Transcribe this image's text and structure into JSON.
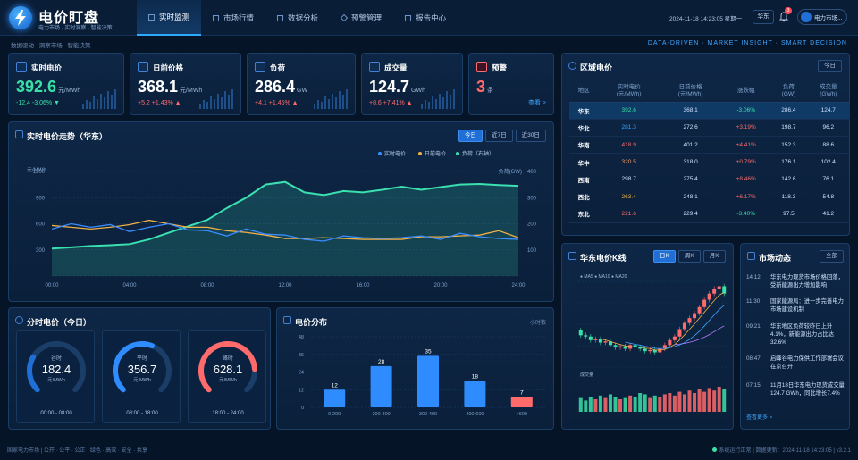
{
  "app": {
    "title": "电价盯盘",
    "subtitle": "电力市场 · 实时洞察 · 智能决策"
  },
  "nav": [
    {
      "label": "实时监测",
      "active": true
    },
    {
      "label": "市场行情"
    },
    {
      "label": "数据分析"
    },
    {
      "label": "预警管理"
    },
    {
      "label": "报告中心"
    }
  ],
  "header": {
    "datetime": "2024-11-18 14:23:05 星期一",
    "region": "华东",
    "bell_badge": "3",
    "user": "电力市场..."
  },
  "breadcrumb": "数据驱动 · 洞察市场 · 智能决策",
  "slogan": "DATA-DRIVEN · MARKET INSIGHT · SMART DECISION",
  "kpis": [
    {
      "label": "实时电价",
      "value": "392.6",
      "unit": "元/MWh",
      "change": "-12.4  -3.06% ▼",
      "trend": "down",
      "accent": "#39e0a7"
    },
    {
      "label": "日前价格",
      "value": "368.1",
      "unit": "元/MWh",
      "change": "+5.2  +1.43% ▲",
      "trend": "up",
      "accent": "#ffffff"
    },
    {
      "label": "负荷",
      "value": "286.4",
      "unit": "GW",
      "change": "+4.1  +1.45% ▲",
      "trend": "up",
      "accent": "#ffffff"
    },
    {
      "label": "成交量",
      "value": "124.7",
      "unit": "GWh",
      "change": "+8.6  +7.41% ▲",
      "trend": "up",
      "accent": "#ffffff"
    },
    {
      "label": "预警",
      "value": "3",
      "unit": "条",
      "change": "",
      "trend": "up",
      "accent": "#ff6b6b",
      "link": "查看 >"
    }
  ],
  "trend": {
    "title": "实时电价走势（华东）",
    "tabs": [
      "今日",
      "近7日",
      "近30日"
    ],
    "active_tab": 0,
    "legend": [
      "实时电价",
      "日前电价",
      "负荷（右轴）"
    ],
    "left_unit": "元/MWh",
    "right_unit": "负荷(GW)",
    "y_left_ticks": [
      "1200",
      "900",
      "600",
      "300"
    ],
    "y_right_ticks": [
      "400",
      "300",
      "200",
      "100"
    ],
    "x_ticks": [
      "00:00",
      "04:00",
      "08:00",
      "12:00",
      "16:00",
      "20:00",
      "24:00"
    ]
  },
  "region_table": {
    "title": "区域电价",
    "button": "今日",
    "headers": [
      "地区",
      "实时电价\n(元/MWh)",
      "日前价格\n(元/MWh)",
      "涨跌幅",
      "负荷\n(GW)",
      "成交量\n(GWh)"
    ],
    "rows": [
      [
        "华东",
        "392.6",
        "368.1",
        "-3.06%",
        "286.4",
        "124.7"
      ],
      [
        "华北",
        "281.3",
        "272.6",
        "+3.19%",
        "198.7",
        "96.2"
      ],
      [
        "华南",
        "418.9",
        "401.2",
        "+4.41%",
        "152.3",
        "88.6"
      ],
      [
        "华中",
        "320.5",
        "318.0",
        "+0.79%",
        "176.1",
        "102.4"
      ],
      [
        "西南",
        "298.7",
        "275.4",
        "+8.46%",
        "142.6",
        "76.1"
      ],
      [
        "西北",
        "263.4",
        "248.1",
        "+6.17%",
        "118.3",
        "54.8"
      ],
      [
        "东北",
        "221.6",
        "229.4",
        "-3.40%",
        "97.5",
        "41.2"
      ]
    ]
  },
  "time_price": {
    "title": "分时电价（今日）",
    "gauges": [
      {
        "label": "谷时",
        "value": "182.4",
        "unit": "元/MWh",
        "range": "00:00 - 08:00",
        "color": "#1f6fd6",
        "pct": 0.28
      },
      {
        "label": "平时",
        "value": "356.7",
        "unit": "元/MWh",
        "range": "08:00 - 18:00",
        "color": "#2f8cff",
        "pct": 0.58
      },
      {
        "label": "峰时",
        "value": "628.1",
        "unit": "元/MWh",
        "range": "18:00 - 24:00",
        "color": "#ff6b6b",
        "pct": 0.82
      }
    ]
  },
  "distribution": {
    "title": "电价分布",
    "note": "小时数"
  },
  "kline": {
    "title": "华东电价K线",
    "tabs": [
      "日K",
      "周K",
      "月K"
    ],
    "active_tab": 0,
    "ma_label": "● MA5 ● MA10 ● MA20",
    "vol_label": "成交量"
  },
  "news": {
    "title": "市场动态",
    "button": "全部",
    "items": [
      {
        "time": "14:12",
        "text": "华东电力现货市场价格回落，受新能源出力增加影响"
      },
      {
        "time": "11:30",
        "text": "国家能源局：进一步完善电力市场建设机制"
      },
      {
        "time": "09:21",
        "text": "华东地区负荷较昨日上升4.1%，新能源出力占比达32.6%"
      },
      {
        "time": "08:47",
        "text": "启峰谷电力保供工作部署会议在京召开"
      },
      {
        "time": "07:15",
        "text": "11月18日华东电力现货成交量 124.7 GWh，同比增长7.4%"
      }
    ],
    "more": "查看更多 >"
  },
  "footer": {
    "left": "国家电力市场 | 公开 · 公平 · 公正 · 绿色 · 高效 · 安全 · 共享",
    "status": "系统运行正常",
    "update": "数据更新：2024-11-18 14:23:05",
    "version": "v3.2.1"
  },
  "chart_data": [
    {
      "type": "line",
      "title": "实时电价走势（华东）",
      "x": [
        "00:00",
        "01:00",
        "02:00",
        "03:00",
        "04:00",
        "05:00",
        "06:00",
        "07:00",
        "08:00",
        "09:00",
        "10:00",
        "11:00",
        "12:00",
        "13:00",
        "14:00",
        "15:00",
        "16:00",
        "17:00",
        "18:00",
        "19:00",
        "20:00",
        "21:00",
        "22:00",
        "23:00",
        "24:00"
      ],
      "series": [
        {
          "name": "实时电价",
          "axis": "left",
          "color": "#3a8cff",
          "values": [
            540,
            600,
            560,
            590,
            510,
            560,
            600,
            530,
            520,
            460,
            540,
            480,
            470,
            420,
            400,
            460,
            440,
            430,
            440,
            460,
            420,
            490,
            450,
            430,
            420
          ]
        },
        {
          "name": "日前电价",
          "axis": "left",
          "color": "#f0b048",
          "values": [
            580,
            560,
            540,
            560,
            590,
            640,
            600,
            560,
            560,
            520,
            500,
            470,
            430,
            430,
            440,
            430,
            420,
            420,
            420,
            450,
            450,
            460,
            470,
            520,
            440
          ]
        },
        {
          "name": "负荷（右轴）",
          "axis": "right",
          "color": "#3be0b0",
          "values": [
            105,
            110,
            115,
            118,
            122,
            140,
            165,
            190,
            215,
            260,
            300,
            350,
            360,
            320,
            310,
            325,
            320,
            330,
            342,
            330,
            340,
            350,
            352,
            348,
            345
          ]
        }
      ],
      "ylim_left": [
        0,
        1200
      ],
      "ylim_right": [
        0,
        400
      ]
    },
    {
      "type": "bar",
      "title": "电价分布",
      "categories": [
        "0-200",
        "200-300",
        "300-400",
        "400-600",
        ">600"
      ],
      "values": [
        12,
        28,
        35,
        18,
        7
      ],
      "colors": [
        "#2f8cff",
        "#2f8cff",
        "#2f8cff",
        "#2f8cff",
        "#ff6b6b"
      ],
      "y_ticks": [
        "48",
        "36",
        "24",
        "12",
        "0"
      ],
      "ylim": [
        0,
        48
      ]
    },
    {
      "type": "candlestick",
      "title": "华东电价K线",
      "open": [
        360,
        352,
        350,
        344,
        346,
        340,
        342,
        336,
        332,
        334,
        330,
        336,
        332,
        330,
        326,
        328,
        324,
        330,
        336,
        344,
        350,
        362,
        372,
        380,
        388,
        398,
        410,
        420,
        428,
        432
      ],
      "close": [
        352,
        350,
        344,
        346,
        340,
        342,
        336,
        332,
        334,
        330,
        336,
        332,
        330,
        326,
        328,
        324,
        330,
        336,
        344,
        350,
        362,
        372,
        380,
        388,
        398,
        410,
        420,
        428,
        432,
        420
      ],
      "volume": [
        22,
        18,
        24,
        20,
        26,
        22,
        28,
        24,
        20,
        22,
        26,
        24,
        30,
        28,
        22,
        26,
        24,
        28,
        30,
        26,
        32,
        28,
        34,
        30,
        36,
        32,
        38,
        34,
        40,
        36
      ]
    }
  ]
}
